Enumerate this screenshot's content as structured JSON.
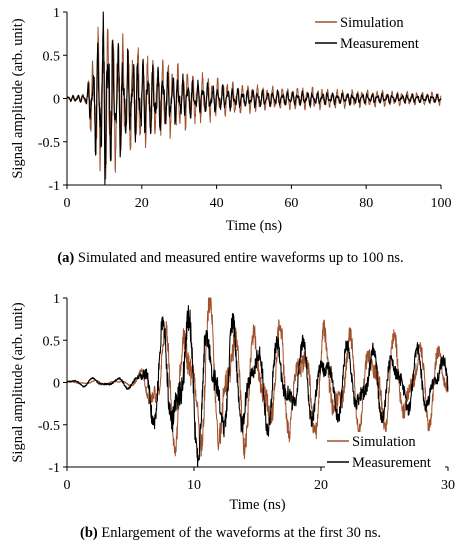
{
  "chart_data": [
    {
      "type": "line",
      "xlabel": "Time (ns)",
      "ylabel": "Signal  amplitude  (arb. unit)",
      "xlim": [
        0,
        100
      ],
      "ylim": [
        -1,
        1
      ],
      "x_ticks": [
        "0",
        "20",
        "40",
        "60",
        "80",
        "100"
      ],
      "y_ticks": [
        "-1",
        "-0.5",
        "0",
        "0.5",
        "1"
      ],
      "grid": false,
      "legend_position": "top-right",
      "series": [
        {
          "name": "Simulation",
          "color": "#a0522d",
          "x": [
            0,
            5,
            7,
            8,
            9,
            10,
            11,
            12,
            14,
            16,
            18,
            20,
            22,
            25,
            28,
            30,
            33,
            36,
            40,
            45,
            50,
            55,
            60,
            65,
            70,
            80,
            90,
            100
          ],
          "envelope": [
            0.02,
            0.05,
            0.55,
            0.8,
            0.95,
            1.0,
            0.9,
            0.85,
            0.7,
            0.65,
            0.6,
            0.55,
            0.5,
            0.45,
            0.4,
            0.38,
            0.32,
            0.28,
            0.22,
            0.18,
            0.16,
            0.14,
            0.13,
            0.12,
            0.11,
            0.1,
            0.08,
            0.07
          ]
        },
        {
          "name": "Measurement",
          "color": "#000000",
          "x": [
            0,
            5,
            7,
            8,
            9,
            10,
            11,
            12,
            14,
            16,
            18,
            20,
            22,
            25,
            28,
            30,
            33,
            36,
            40,
            45,
            50,
            55,
            60,
            65,
            70,
            80,
            90,
            100
          ],
          "envelope": [
            0.03,
            0.05,
            0.45,
            0.7,
            0.9,
            1.0,
            0.85,
            0.8,
            0.6,
            0.55,
            0.5,
            0.45,
            0.4,
            0.35,
            0.3,
            0.28,
            0.22,
            0.18,
            0.15,
            0.12,
            0.1,
            0.09,
            0.08,
            0.08,
            0.07,
            0.06,
            0.05,
            0.05
          ]
        }
      ]
    },
    {
      "type": "line",
      "xlabel": "Time (ns)",
      "ylabel": "Signal amplitude (arb. unit)",
      "xlim": [
        0,
        30
      ],
      "ylim": [
        -1,
        1
      ],
      "x_ticks": [
        "0",
        "10",
        "20",
        "30"
      ],
      "y_ticks": [
        "-1",
        "-0.5",
        "0",
        "0.5",
        "1"
      ],
      "grid": false,
      "legend_position": "bottom-right",
      "series": [
        {
          "name": "Simulation",
          "color": "#a0522d",
          "x": [
            0,
            4,
            5.5,
            6.5,
            7.5,
            8.5,
            9.5,
            10.5,
            11.5,
            12.5,
            13.5,
            15,
            17,
            19,
            21,
            23,
            25,
            27,
            30
          ],
          "envelope": [
            0.02,
            0.03,
            0.05,
            0.4,
            0.75,
            0.8,
            0.85,
            0.95,
            1.0,
            0.9,
            0.8,
            0.75,
            0.7,
            0.65,
            0.7,
            0.6,
            0.62,
            0.55,
            0.5
          ]
        },
        {
          "name": "Measurement",
          "color": "#000000",
          "x": [
            0,
            2,
            4,
            5.5,
            6.5,
            7.5,
            8.5,
            9.5,
            10.5,
            11.5,
            12.5,
            13.5,
            15,
            17,
            19,
            21,
            23,
            25,
            27,
            30
          ],
          "envelope": [
            0.03,
            0.06,
            0.05,
            0.1,
            0.55,
            0.7,
            0.85,
            1.0,
            0.9,
            0.8,
            0.75,
            0.7,
            0.6,
            0.55,
            0.5,
            0.45,
            0.5,
            0.45,
            0.42,
            0.4
          ]
        }
      ]
    }
  ],
  "captions": {
    "a_label": "(a)",
    "a_text": " Simulated and measured entire waveforms up to 100 ns.",
    "b_label": "(b)",
    "b_text": " Enlargement of the waveforms at the first 30 ns."
  }
}
